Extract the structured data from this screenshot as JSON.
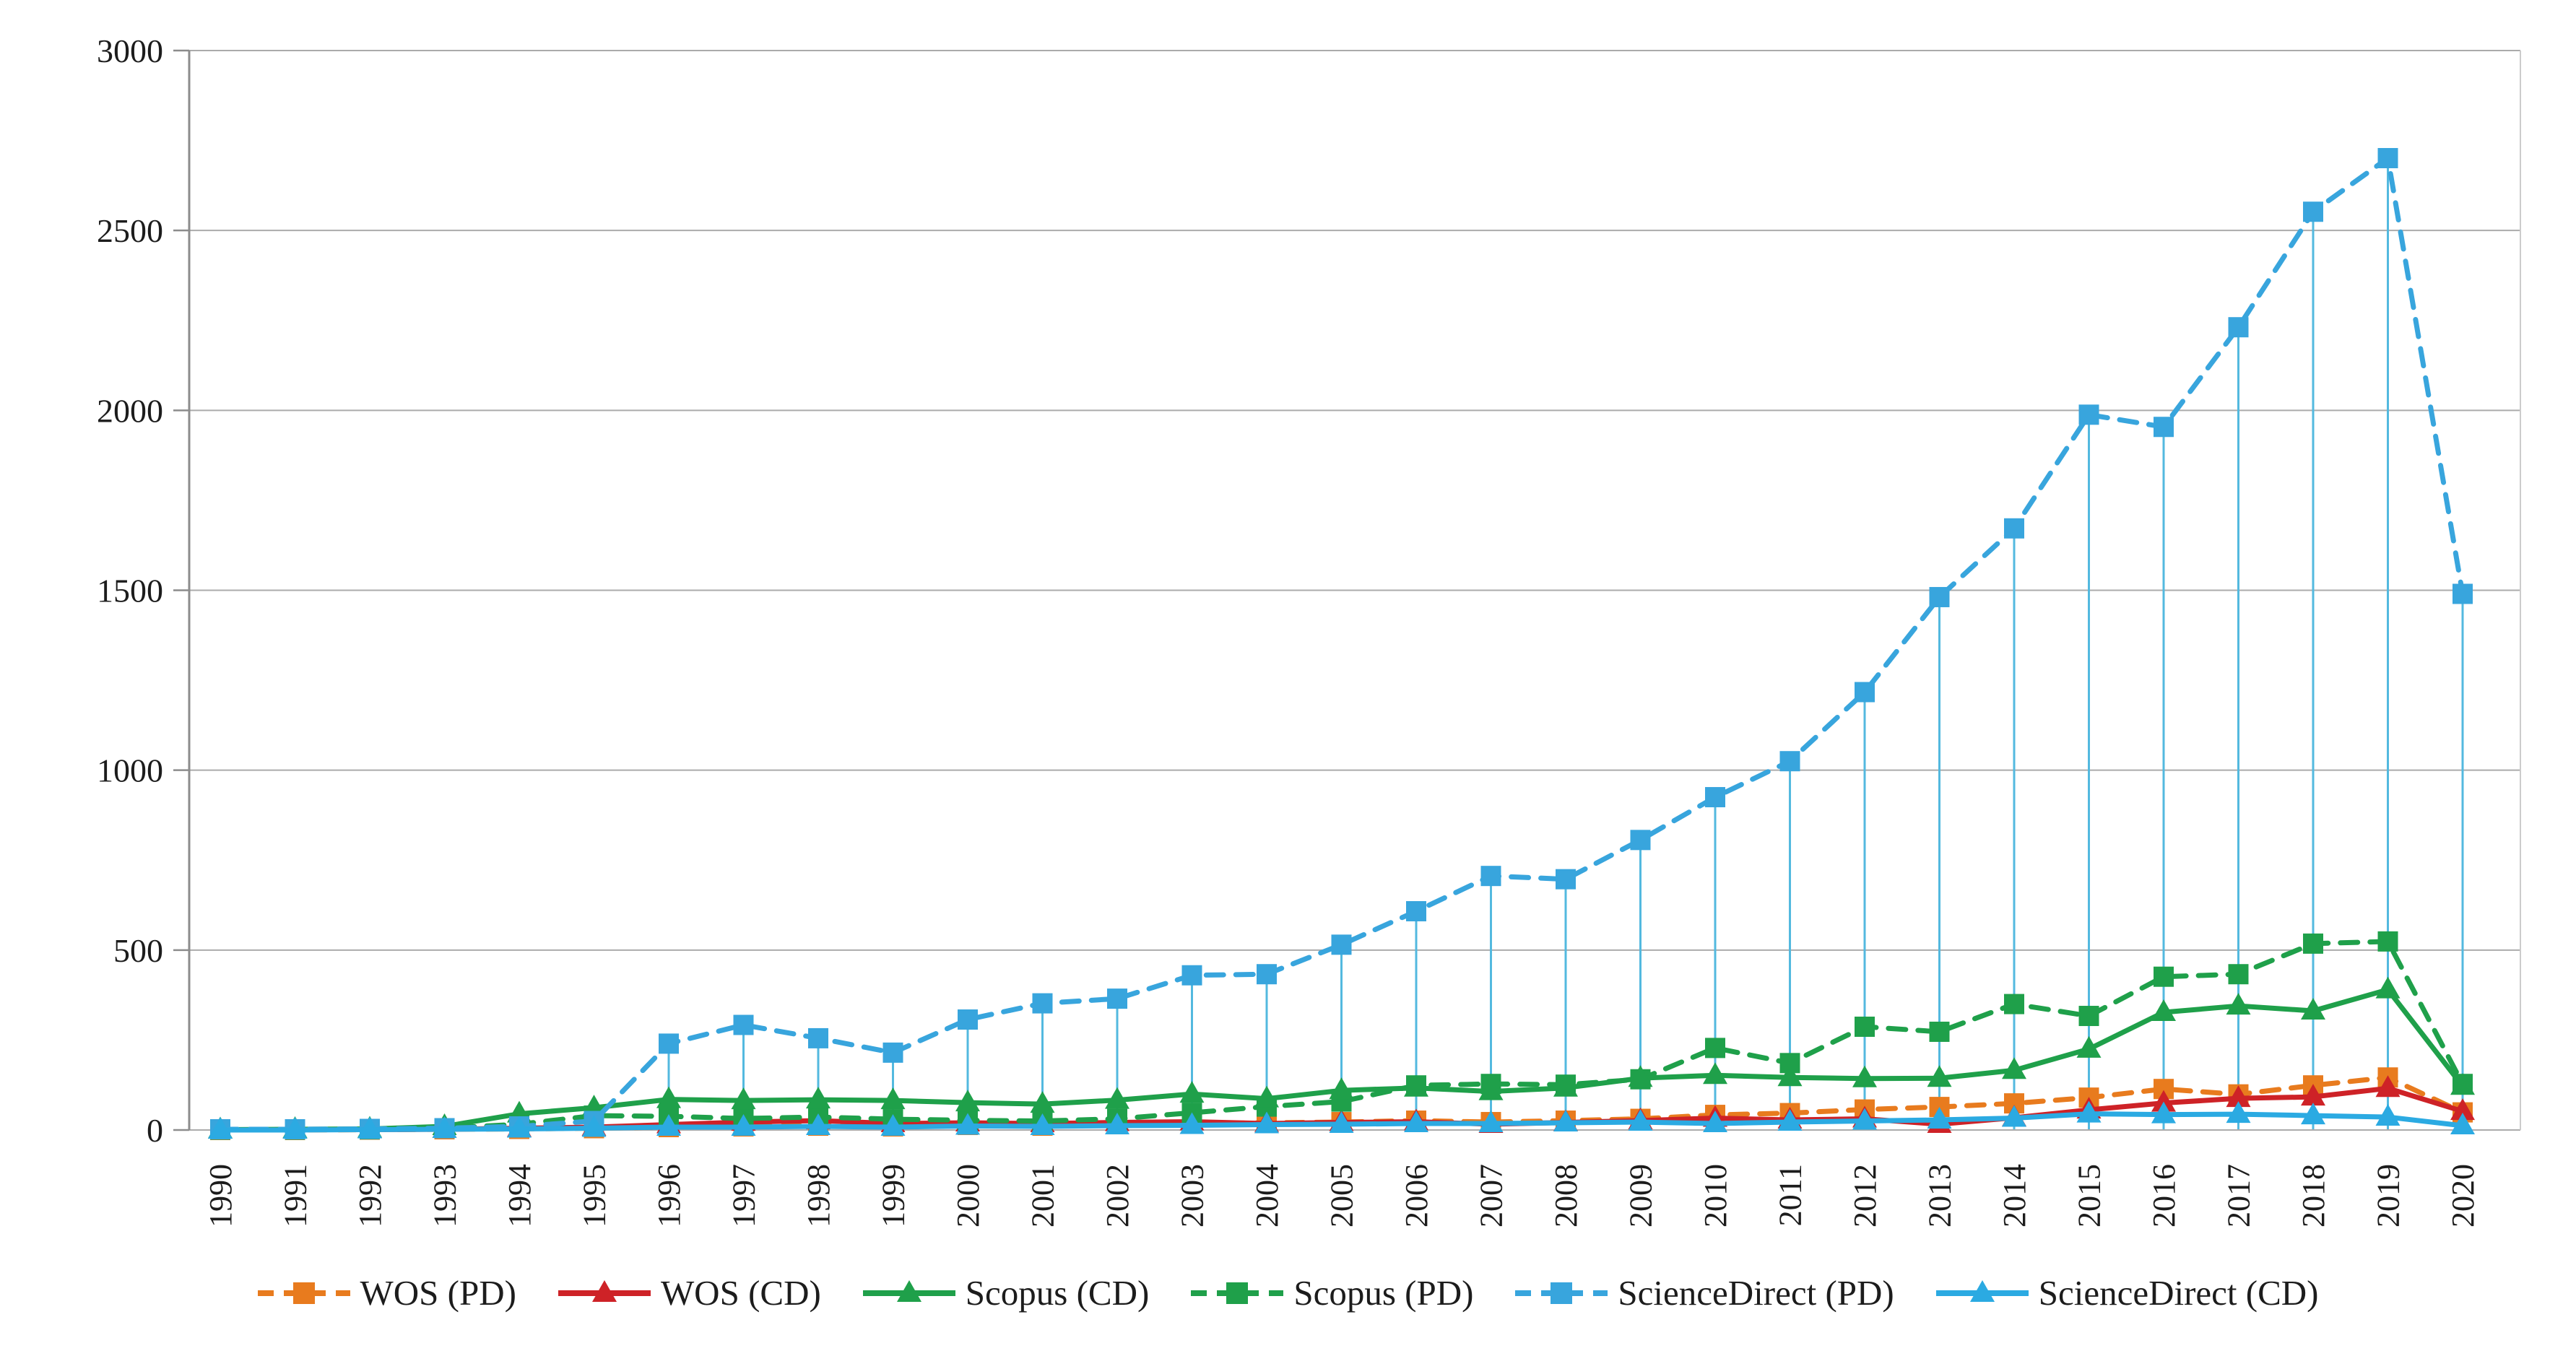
{
  "chart_data": {
    "type": "line",
    "title": "",
    "xlabel": "",
    "ylabel": "",
    "x": [
      "1990",
      "1991",
      "1992",
      "1993",
      "1994",
      "1995",
      "1996",
      "1997",
      "1998",
      "1999",
      "2000",
      "2001",
      "2002",
      "2003",
      "2004",
      "2005",
      "2006",
      "2007",
      "2008",
      "2009",
      "2010",
      "2011",
      "2012",
      "2013",
      "2014",
      "2015",
      "2016",
      "2017",
      "2018",
      "2019",
      "2020"
    ],
    "ylim": [
      0,
      3000
    ],
    "yticks": [
      0,
      500,
      1000,
      1500,
      2000,
      2500,
      3000
    ],
    "grid": true,
    "legend_position": "bottom",
    "colors": {
      "gridline": "#ababab",
      "axis_line": "#8c8c8c",
      "right_border": "#cccccc",
      "drop_line": "#53b9df",
      "text": "#1c1c1c"
    },
    "series": [
      {
        "name": "WOS (PD)",
        "color": "#e87b1e",
        "style": "dashed",
        "marker": "square",
        "values": [
          0,
          0,
          1,
          2,
          3,
          5,
          8,
          10,
          12,
          10,
          14,
          12,
          16,
          18,
          20,
          22,
          26,
          22,
          26,
          31,
          42,
          47,
          57,
          64,
          74,
          90,
          114,
          99,
          124,
          146,
          49
        ]
      },
      {
        "name": "WOS (CD)",
        "color": "#ce2227",
        "style": "solid",
        "marker": "triangle",
        "values": [
          0,
          1,
          1,
          2,
          5,
          8,
          15,
          22,
          26,
          18,
          20,
          18,
          21,
          23,
          18,
          21,
          23,
          16,
          21,
          26,
          33,
          28,
          31,
          16,
          34,
          56,
          75,
          88,
          92,
          116,
          52
        ]
      },
      {
        "name": "Scopus (CD)",
        "color": "#1fa04a",
        "style": "solid",
        "marker": "triangle",
        "values": [
          1,
          2,
          3,
          10,
          45,
          62,
          85,
          82,
          84,
          82,
          76,
          72,
          83,
          100,
          87,
          110,
          117,
          107,
          117,
          144,
          152,
          146,
          143,
          144,
          166,
          225,
          327,
          345,
          331,
          390,
          122
        ]
      },
      {
        "name": "Scopus (PD)",
        "color": "#1fa04a",
        "style": "dashed",
        "marker": "square",
        "values": [
          1,
          1,
          2,
          5,
          16,
          40,
          38,
          32,
          36,
          30,
          27,
          25,
          31,
          48,
          65,
          79,
          124,
          128,
          126,
          141,
          228,
          186,
          287,
          273,
          350,
          317,
          426,
          433,
          518,
          524,
          128
        ]
      },
      {
        "name": "ScienceDirect (PD)",
        "color": "#38a5dd",
        "style": "dashed",
        "marker": "square",
        "drop_lines": true,
        "values": [
          2,
          2,
          3,
          5,
          10,
          25,
          240,
          292,
          255,
          215,
          307,
          352,
          365,
          430,
          433,
          515,
          608,
          706,
          697,
          806,
          925,
          1025,
          1217,
          1481,
          1672,
          1988,
          1954,
          2231,
          2552,
          2701,
          1490
        ]
      },
      {
        "name": "ScienceDirect (CD)",
        "color": "#2baae2",
        "style": "solid",
        "marker": "triangle",
        "values": [
          0,
          0,
          1,
          2,
          3,
          5,
          8,
          8,
          10,
          8,
          11,
          10,
          12,
          13,
          15,
          16,
          18,
          18,
          20,
          22,
          18,
          22,
          25,
          28,
          33,
          45,
          43,
          44,
          40,
          36,
          12
        ]
      }
    ],
    "draw_order": [
      0,
      1,
      3,
      2,
      4,
      5
    ]
  }
}
